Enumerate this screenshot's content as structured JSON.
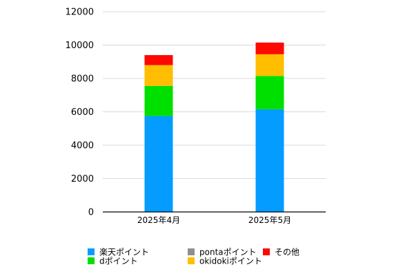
{
  "chart_data": {
    "type": "bar",
    "stacked": true,
    "title": "",
    "xlabel": "",
    "ylabel": "",
    "ylim": [
      0,
      12000
    ],
    "yticks": [
      0,
      2000,
      4000,
      6000,
      8000,
      10000,
      12000
    ],
    "grid": true,
    "legend_position": "bottom",
    "categories": [
      "2025年4月",
      "2025年5月"
    ],
    "series": [
      {
        "name": "楽天ポイント",
        "color": "#049cff",
        "values": [
          5750,
          6150
        ]
      },
      {
        "name": "dポイント",
        "color": "#00e000",
        "values": [
          1800,
          2000
        ]
      },
      {
        "name": "pontaポイント",
        "color": "#8f8f8f",
        "values": [
          0,
          0
        ]
      },
      {
        "name": "okidokiポイント",
        "color": "#ffbe00",
        "values": [
          1250,
          1300
        ]
      },
      {
        "name": "その他",
        "color": "#ff0800",
        "values": [
          600,
          700
        ]
      }
    ]
  }
}
